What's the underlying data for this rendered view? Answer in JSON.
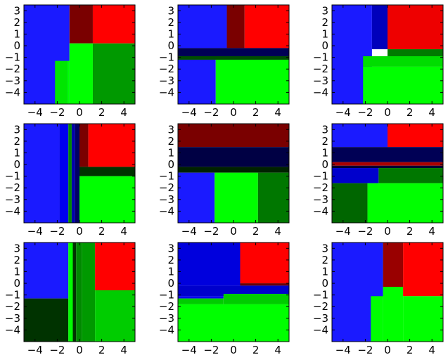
{
  "chart_data": [
    {
      "type": "heatmap",
      "xlim": [
        -5,
        5
      ],
      "ylim": [
        -5,
        3.5
      ],
      "xticks": [
        -4,
        -2,
        0,
        2,
        4
      ],
      "yticks": [
        -4,
        -3,
        -2,
        -1,
        0,
        1,
        2,
        3
      ],
      "regions": [
        {
          "x": [
            -5,
            -0.9
          ],
          "y": [
            -5,
            3.5
          ],
          "color": "#1a1aff"
        },
        {
          "x": [
            -0.9,
            1.2
          ],
          "y": [
            0.2,
            3.5
          ],
          "color": "#7a0000"
        },
        {
          "x": [
            1.2,
            5
          ],
          "y": [
            0.2,
            3.5
          ],
          "color": "#ff0000"
        },
        {
          "x": [
            -2.2,
            -1.1
          ],
          "y": [
            -5,
            -1.3
          ],
          "color": "#00e600"
        },
        {
          "x": [
            -1.1,
            -0.9
          ],
          "y": [
            -5,
            -1.3
          ],
          "color": "#00ff00"
        },
        {
          "x": [
            -0.9,
            1.2
          ],
          "y": [
            -5,
            0.2
          ],
          "color": "#00ff00"
        },
        {
          "x": [
            1.2,
            5
          ],
          "y": [
            -5,
            0.2
          ],
          "color": "#009900"
        }
      ]
    },
    {
      "type": "heatmap",
      "xlim": [
        -5,
        5
      ],
      "ylim": [
        -5,
        3.5
      ],
      "xticks": [
        -4,
        -2,
        0,
        2,
        4
      ],
      "yticks": [
        -4,
        -3,
        -2,
        -1,
        0,
        1,
        2,
        3
      ],
      "regions": [
        {
          "x": [
            -5,
            -0.6
          ],
          "y": [
            -0.2,
            3.5
          ],
          "color": "#1a1aff"
        },
        {
          "x": [
            -0.6,
            1.0
          ],
          "y": [
            -0.2,
            3.5
          ],
          "color": "#7a0000"
        },
        {
          "x": [
            1.0,
            5
          ],
          "y": [
            -0.2,
            3.5
          ],
          "color": "#ff0000"
        },
        {
          "x": [
            -5,
            5
          ],
          "y": [
            -0.9,
            -0.2
          ],
          "color": "#000055"
        },
        {
          "x": [
            -5,
            5
          ],
          "y": [
            -1.2,
            -0.9
          ],
          "color": "#004d00"
        },
        {
          "x": [
            -5,
            -1.6
          ],
          "y": [
            -5,
            -1.2
          ],
          "color": "#1a1aff"
        },
        {
          "x": [
            -1.6,
            5
          ],
          "y": [
            -5,
            -1.2
          ],
          "color": "#00ff00"
        }
      ]
    },
    {
      "type": "heatmap",
      "xlim": [
        -5,
        5
      ],
      "ylim": [
        -5,
        3.5
      ],
      "xticks": [
        -4,
        -2,
        0,
        2,
        4
      ],
      "yticks": [
        -4,
        -3,
        -2,
        -1,
        0,
        1,
        2,
        3
      ],
      "regions": [
        {
          "x": [
            -5,
            -1.4
          ],
          "y": [
            -5,
            3.5
          ],
          "color": "#1a1aff"
        },
        {
          "x": [
            -1.4,
            0
          ],
          "y": [
            -0.3,
            3.5
          ],
          "color": "#0000bb"
        },
        {
          "x": [
            0,
            5
          ],
          "y": [
            -0.3,
            3.5
          ],
          "color": "#ee0000"
        },
        {
          "x": [
            0,
            5
          ],
          "y": [
            -0.9,
            -0.3
          ],
          "color": "#007a00"
        },
        {
          "x": [
            -2.2,
            5
          ],
          "y": [
            -1.8,
            -0.9
          ],
          "color": "#00dd00"
        },
        {
          "x": [
            -2.2,
            5
          ],
          "y": [
            -5,
            -1.8
          ],
          "color": "#00ff00"
        }
      ]
    },
    {
      "type": "heatmap",
      "xlim": [
        -5,
        5
      ],
      "ylim": [
        -5,
        3.5
      ],
      "xticks": [
        -4,
        -2,
        0,
        2,
        4
      ],
      "yticks": [
        -4,
        -3,
        -2,
        -1,
        0,
        1,
        2,
        3
      ],
      "regions": [
        {
          "x": [
            -5,
            -1.8
          ],
          "y": [
            -5,
            3.5
          ],
          "color": "#1a1aff"
        },
        {
          "x": [
            -1.8,
            -1.0
          ],
          "y": [
            -5,
            3.5
          ],
          "color": "#0000ee"
        },
        {
          "x": [
            -1.0,
            -0.7
          ],
          "y": [
            -5,
            3.5
          ],
          "color": "#008800"
        },
        {
          "x": [
            -0.7,
            -0.4
          ],
          "y": [
            -5,
            3.5
          ],
          "color": "#0000aa"
        },
        {
          "x": [
            -0.4,
            0
          ],
          "y": [
            -5,
            3.5
          ],
          "color": "#000066"
        },
        {
          "x": [
            0,
            0.8
          ],
          "y": [
            -0.2,
            3.5
          ],
          "color": "#7a0000"
        },
        {
          "x": [
            0.8,
            5
          ],
          "y": [
            -0.2,
            3.5
          ],
          "color": "#ff0000"
        },
        {
          "x": [
            0,
            5
          ],
          "y": [
            -1.0,
            -0.2
          ],
          "color": "#003300"
        },
        {
          "x": [
            0,
            5
          ],
          "y": [
            -5,
            -1.0
          ],
          "color": "#00ff00"
        }
      ]
    },
    {
      "type": "heatmap",
      "xlim": [
        -5,
        5
      ],
      "ylim": [
        -5,
        3.5
      ],
      "xticks": [
        -4,
        -2,
        0,
        2,
        4
      ],
      "yticks": [
        -4,
        -3,
        -2,
        -1,
        0,
        1,
        2,
        3
      ],
      "regions": [
        {
          "x": [
            -5,
            5
          ],
          "y": [
            1.5,
            3.5
          ],
          "color": "#7a0000"
        },
        {
          "x": [
            -5,
            5
          ],
          "y": [
            -0.2,
            1.5
          ],
          "color": "#000044"
        },
        {
          "x": [
            -5,
            5
          ],
          "y": [
            -0.7,
            -0.2
          ],
          "color": "#002200"
        },
        {
          "x": [
            -5,
            -1.7
          ],
          "y": [
            -5,
            -0.7
          ],
          "color": "#1a1aff"
        },
        {
          "x": [
            -1.7,
            2.2
          ],
          "y": [
            -5,
            -0.7
          ],
          "color": "#00ff00"
        },
        {
          "x": [
            2.2,
            5
          ],
          "y": [
            -5,
            -0.7
          ],
          "color": "#007700"
        }
      ]
    },
    {
      "type": "heatmap",
      "xlim": [
        -5,
        5
      ],
      "ylim": [
        -5,
        3.5
      ],
      "xticks": [
        -4,
        -2,
        0,
        2,
        4
      ],
      "yticks": [
        -4,
        -3,
        -2,
        -1,
        0,
        1,
        2,
        3
      ],
      "regions": [
        {
          "x": [
            -5,
            0
          ],
          "y": [
            1.5,
            3.5
          ],
          "color": "#1a1aff"
        },
        {
          "x": [
            0,
            5
          ],
          "y": [
            1.5,
            3.5
          ],
          "color": "#ff0000"
        },
        {
          "x": [
            -5,
            5
          ],
          "y": [
            0.2,
            1.5
          ],
          "color": "#000055"
        },
        {
          "x": [
            -5,
            5
          ],
          "y": [
            -0.1,
            0.2
          ],
          "color": "#aa0000"
        },
        {
          "x": [
            -5,
            5
          ],
          "y": [
            -0.3,
            -0.1
          ],
          "color": "#000033"
        },
        {
          "x": [
            -5,
            -0.8
          ],
          "y": [
            -1.6,
            -0.3
          ],
          "color": "#0000cc"
        },
        {
          "x": [
            -0.8,
            5
          ],
          "y": [
            -1.6,
            -0.3
          ],
          "color": "#007700"
        },
        {
          "x": [
            -5,
            -1.8
          ],
          "y": [
            -5,
            -1.6
          ],
          "color": "#006600"
        },
        {
          "x": [
            -1.8,
            5
          ],
          "y": [
            -5,
            -1.6
          ],
          "color": "#00ff00"
        }
      ]
    },
    {
      "type": "heatmap",
      "xlim": [
        -5,
        5
      ],
      "ylim": [
        -5,
        3.5
      ],
      "xticks": [
        -4,
        -2,
        0,
        2,
        4
      ],
      "yticks": [
        -4,
        -3,
        -2,
        -1,
        0,
        1,
        2,
        3
      ],
      "regions": [
        {
          "x": [
            -5,
            -1.0
          ],
          "y": [
            -1.3,
            3.5
          ],
          "color": "#1a1aff"
        },
        {
          "x": [
            -5,
            -1.0
          ],
          "y": [
            -5,
            -1.3
          ],
          "color": "#003300"
        },
        {
          "x": [
            -1.0,
            -0.6
          ],
          "y": [
            -5,
            3.5
          ],
          "color": "#00ff00"
        },
        {
          "x": [
            -0.6,
            -0.3
          ],
          "y": [
            -5,
            3.5
          ],
          "color": "#003300"
        },
        {
          "x": [
            -0.3,
            0.2
          ],
          "y": [
            -5,
            3.5
          ],
          "color": "#008800"
        },
        {
          "x": [
            0.2,
            1.4
          ],
          "y": [
            -5,
            3.5
          ],
          "color": "#009900"
        },
        {
          "x": [
            1.4,
            5
          ],
          "y": [
            -0.6,
            3.5
          ],
          "color": "#ff0000"
        },
        {
          "x": [
            1.4,
            5
          ],
          "y": [
            -5,
            -0.6
          ],
          "color": "#00cc00"
        }
      ]
    },
    {
      "type": "heatmap",
      "xlim": [
        -5,
        5
      ],
      "ylim": [
        -5,
        3.5
      ],
      "xticks": [
        -4,
        -2,
        0,
        2,
        4
      ],
      "yticks": [
        -4,
        -3,
        -2,
        -1,
        0,
        1,
        2,
        3
      ],
      "regions": [
        {
          "x": [
            -5,
            0.6
          ],
          "y": [
            -0.2,
            3.5
          ],
          "color": "#0000dd"
        },
        {
          "x": [
            0.6,
            5
          ],
          "y": [
            0,
            3.5
          ],
          "color": "#ff0000"
        },
        {
          "x": [
            0.6,
            5
          ],
          "y": [
            -0.2,
            0
          ],
          "color": "#660000"
        },
        {
          "x": [
            -5,
            5
          ],
          "y": [
            -1.1,
            -0.2
          ],
          "color": "#0000cc"
        },
        {
          "x": [
            -5,
            -0.9
          ],
          "y": [
            -1.3,
            -1.1
          ],
          "color": "#0000ee"
        },
        {
          "x": [
            -0.9,
            5
          ],
          "y": [
            -1.8,
            -0.9
          ],
          "color": "#00cc00"
        },
        {
          "x": [
            -5,
            -0.9
          ],
          "y": [
            -1.8,
            -1.3
          ],
          "color": "#00cc00"
        },
        {
          "x": [
            -5,
            5
          ],
          "y": [
            -5,
            -1.8
          ],
          "color": "#00ff00"
        }
      ]
    },
    {
      "type": "heatmap",
      "xlim": [
        -5,
        5
      ],
      "ylim": [
        -5,
        3.5
      ],
      "xticks": [
        -4,
        -2,
        0,
        2,
        4
      ],
      "yticks": [
        -4,
        -3,
        -2,
        -1,
        0,
        1,
        2,
        3
      ],
      "regions": [
        {
          "x": [
            -5,
            -0.4
          ],
          "y": [
            -5,
            3.5
          ],
          "color": "#1a1aff"
        },
        {
          "x": [
            -1.5,
            -0.4
          ],
          "y": [
            -5,
            -1.1
          ],
          "color": "#00ff00"
        },
        {
          "x": [
            -0.4,
            1.4
          ],
          "y": [
            -5,
            3.5
          ],
          "color": "#00ff00"
        },
        {
          "x": [
            -0.4,
            1.4
          ],
          "y": [
            -0.3,
            3.5
          ],
          "color": "#990000"
        },
        {
          "x": [
            1.4,
            5
          ],
          "y": [
            -1.1,
            3.5
          ],
          "color": "#ff0000"
        },
        {
          "x": [
            1.4,
            5
          ],
          "y": [
            -5,
            -1.1
          ],
          "color": "#00ff00"
        },
        {
          "x": [
            -0.4,
            0.4
          ],
          "y": [
            -1.1,
            -0.3
          ],
          "color": "#00ff00"
        }
      ]
    }
  ]
}
